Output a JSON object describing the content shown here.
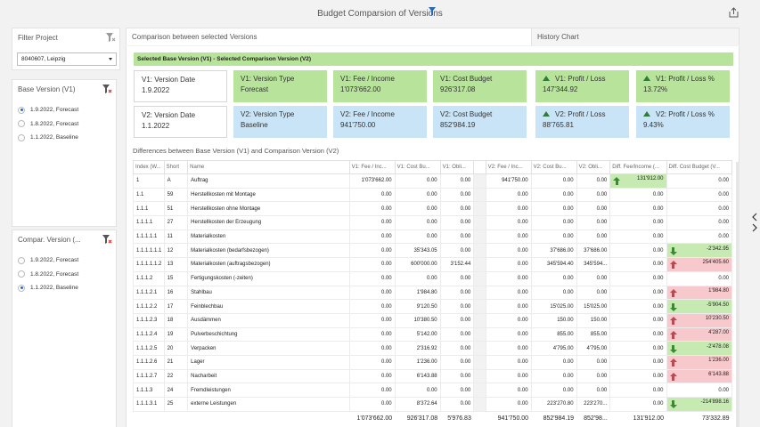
{
  "app": {
    "title": "Budget Comparsion of Versions"
  },
  "filter_project": {
    "title": "Filter Project",
    "selected": "8040607, Leipzig"
  },
  "base_version": {
    "title": "Base Version (V1)",
    "options": [
      {
        "label": "1.9.2022, Forecast",
        "checked": true
      },
      {
        "label": "1.8.2022, Forecast",
        "checked": false
      },
      {
        "label": "1.1.2022, Baseline",
        "checked": false
      }
    ]
  },
  "compar_version": {
    "title": "Compar. Version (...",
    "options": [
      {
        "label": "1.9.2022, Forecast",
        "checked": false
      },
      {
        "label": "1.8.2022, Forecast",
        "checked": false
      },
      {
        "label": "1.1.2022, Baseline",
        "checked": true
      }
    ]
  },
  "tabs": {
    "compare": "Comparison between selected Versions",
    "history": "History Chart"
  },
  "selected_header": "Selected Base Version (V1) - Selected Comparison Version (V2)",
  "cards_v1": [
    {
      "label": "V1: Version Date",
      "value": "1.9.2022",
      "style": "white",
      "icon": ""
    },
    {
      "label": "V1: Version Type",
      "value": "Forecast",
      "style": "green",
      "icon": ""
    },
    {
      "label": "V1: Fee / Income",
      "value": "1'073'662.00",
      "style": "green",
      "icon": ""
    },
    {
      "label": "V1: Cost Budget",
      "value": "926'317.08",
      "style": "green",
      "icon": ""
    },
    {
      "label": "V1: Profit / Loss",
      "value": "147'344.92",
      "style": "green",
      "icon": "up-triangle-icon"
    },
    {
      "label": "V1: Profit / Loss %",
      "value": "13.72%",
      "style": "green",
      "icon": "up-triangle-icon"
    }
  ],
  "cards_v2": [
    {
      "label": "V2: Version Date",
      "value": "1.1.2022",
      "style": "white",
      "icon": ""
    },
    {
      "label": "V2: Version Type",
      "value": "Baseline",
      "style": "blue",
      "icon": ""
    },
    {
      "label": "V2: Fee / Income",
      "value": "941'750.00",
      "style": "blue",
      "icon": ""
    },
    {
      "label": "V2: Cost Budget",
      "value": "852'984.19",
      "style": "blue",
      "icon": ""
    },
    {
      "label": "V2: Profit / Loss",
      "value": "88'765.81",
      "style": "blue",
      "icon": "up-triangle-icon"
    },
    {
      "label": "V2: Profit / Loss %",
      "value": "9.43%",
      "style": "blue",
      "icon": "up-triangle-icon"
    }
  ],
  "differences_title": "Differences between Base Version (V1) and Comparison Version (V2)",
  "table": {
    "headers": [
      "Index (W...",
      "Short",
      "Name",
      "V1: Fee / Inc...",
      "V1: Cost Bu...",
      "V1: Obli...",
      "",
      "V2: Fee / Inc...",
      "V2: Cost Bu...",
      "V2: Obli...",
      "Diff. Fee/Income (...",
      "Diff. Cost Budget (V..."
    ],
    "rows": [
      {
        "cells": [
          "1",
          "A",
          "Auftrag",
          "1'073'662.00",
          "0.00",
          "0.00",
          "",
          "941'750.00",
          "0.00",
          "0.00",
          "131'912.00",
          "0.00"
        ],
        "fee_tone": "green",
        "fee_arrow": "up",
        "cost_tone": "",
        "cost_arrow": ""
      },
      {
        "cells": [
          "1.1",
          "59",
          "Herstellkosten mit Montage",
          "0.00",
          "0.00",
          "0.00",
          "",
          "0.00",
          "0.00",
          "0.00",
          "0.00",
          "0.00"
        ],
        "fee_tone": "",
        "fee_arrow": "",
        "cost_tone": "",
        "cost_arrow": ""
      },
      {
        "cells": [
          "1.1.1",
          "51",
          "Herstellkosten ohne Montage",
          "0.00",
          "0.00",
          "0.00",
          "",
          "0.00",
          "0.00",
          "0.00",
          "0.00",
          "0.00"
        ],
        "fee_tone": "",
        "fee_arrow": "",
        "cost_tone": "",
        "cost_arrow": ""
      },
      {
        "cells": [
          "1.1.1.1",
          "27",
          "Herstellkosten der Erzeugung",
          "0.00",
          "0.00",
          "0.00",
          "",
          "0.00",
          "0.00",
          "0.00",
          "0.00",
          "0.00"
        ],
        "fee_tone": "",
        "fee_arrow": "",
        "cost_tone": "",
        "cost_arrow": ""
      },
      {
        "cells": [
          "1.1.1.1.1",
          "11",
          "Materialkosten",
          "0.00",
          "0.00",
          "0.00",
          "",
          "0.00",
          "0.00",
          "0.00",
          "0.00",
          "0.00"
        ],
        "fee_tone": "",
        "fee_arrow": "",
        "cost_tone": "",
        "cost_arrow": ""
      },
      {
        "cells": [
          "1.1.1.1.1.1",
          "12",
          "Materialkosten (bedarfsbezogen)",
          "0.00",
          "35'343.05",
          "0.00",
          "",
          "0.00",
          "37'686.00",
          "37'686.00",
          "0.00",
          "-2'342.95"
        ],
        "fee_tone": "",
        "fee_arrow": "",
        "cost_tone": "green",
        "cost_arrow": "down"
      },
      {
        "cells": [
          "1.1.1.1.1.2",
          "13",
          "Materialkosten (auftragsbezogen)",
          "0.00",
          "600'000.00",
          "3'152.44",
          "",
          "0.00",
          "345'594.40",
          "345'594...",
          "0.00",
          "254'405.60"
        ],
        "fee_tone": "",
        "fee_arrow": "",
        "cost_tone": "red",
        "cost_arrow": "up"
      },
      {
        "cells": [
          "1.1.1.2",
          "15",
          "Fertigungskosten (-zeiten)",
          "0.00",
          "0.00",
          "0.00",
          "",
          "0.00",
          "0.00",
          "0.00",
          "0.00",
          "0.00"
        ],
        "fee_tone": "",
        "fee_arrow": "",
        "cost_tone": "",
        "cost_arrow": ""
      },
      {
        "cells": [
          "1.1.1.2.1",
          "16",
          "Stahlbau",
          "0.00",
          "1'984.80",
          "0.00",
          "",
          "0.00",
          "0.00",
          "0.00",
          "0.00",
          "1'984.80"
        ],
        "fee_tone": "",
        "fee_arrow": "",
        "cost_tone": "red",
        "cost_arrow": "up"
      },
      {
        "cells": [
          "1.1.1.2.2",
          "17",
          "Feinblechbau",
          "0.00",
          "9'120.50",
          "0.00",
          "",
          "0.00",
          "15'025.00",
          "15'025.00",
          "0.00",
          "-5'904.50"
        ],
        "fee_tone": "",
        "fee_arrow": "",
        "cost_tone": "green",
        "cost_arrow": "down"
      },
      {
        "cells": [
          "1.1.1.2.3",
          "18",
          "Ausdämmen",
          "0.00",
          "10'380.50",
          "0.00",
          "",
          "0.00",
          "150.00",
          "150.00",
          "0.00",
          "10'230.50"
        ],
        "fee_tone": "",
        "fee_arrow": "",
        "cost_tone": "red",
        "cost_arrow": "up"
      },
      {
        "cells": [
          "1.1.1.2.4",
          "19",
          "Pulverbeschichtung",
          "0.00",
          "5'142.00",
          "0.00",
          "",
          "0.00",
          "855.00",
          "855.00",
          "0.00",
          "4'287.00"
        ],
        "fee_tone": "",
        "fee_arrow": "",
        "cost_tone": "red",
        "cost_arrow": "up"
      },
      {
        "cells": [
          "1.1.1.2.5",
          "20",
          "Verpacken",
          "0.00",
          "2'316.92",
          "0.00",
          "",
          "0.00",
          "4'795.00",
          "4'795.00",
          "0.00",
          "-2'478.08"
        ],
        "fee_tone": "",
        "fee_arrow": "",
        "cost_tone": "green",
        "cost_arrow": "down"
      },
      {
        "cells": [
          "1.1.1.2.6",
          "21",
          "Lager",
          "0.00",
          "1'236.00",
          "0.00",
          "",
          "0.00",
          "0.00",
          "0.00",
          "0.00",
          "1'236.00"
        ],
        "fee_tone": "",
        "fee_arrow": "",
        "cost_tone": "red",
        "cost_arrow": "up"
      },
      {
        "cells": [
          "1.1.1.2.7",
          "22",
          "Nacharbeit",
          "0.00",
          "6'143.88",
          "0.00",
          "",
          "0.00",
          "0.00",
          "0.00",
          "0.00",
          "6'143.88"
        ],
        "fee_tone": "",
        "fee_arrow": "",
        "cost_tone": "red",
        "cost_arrow": "up"
      },
      {
        "cells": [
          "1.1.1.3",
          "24",
          "Fremdleistungen",
          "0.00",
          "0.00",
          "0.00",
          "",
          "0.00",
          "0.00",
          "0.00",
          "0.00",
          "0.00"
        ],
        "fee_tone": "",
        "fee_arrow": "",
        "cost_tone": "",
        "cost_arrow": ""
      },
      {
        "cells": [
          "1.1.1.3.1",
          "25",
          "externe Leistungen",
          "0.00",
          "8'372.64",
          "0.00",
          "",
          "0.00",
          "223'270.80",
          "223'270...",
          "0.00",
          "-214'898.16"
        ],
        "fee_tone": "",
        "fee_arrow": "",
        "cost_tone": "green",
        "cost_arrow": "down"
      }
    ],
    "totals": [
      "",
      "",
      "",
      "1'073'662.00",
      "926'317.08",
      "5'976.83",
      "",
      "941'750.00",
      "852'984.19",
      "852'98...",
      "131'912.00",
      "73'332.89"
    ]
  },
  "colors": {
    "green_card": "#b7e39a",
    "blue_card": "#c8e4f6",
    "green_cell": "#c6eab1",
    "red_cell": "#f8c9cc",
    "up_arrow": "#3b8a2f",
    "down_arrow": "#b94a52"
  }
}
